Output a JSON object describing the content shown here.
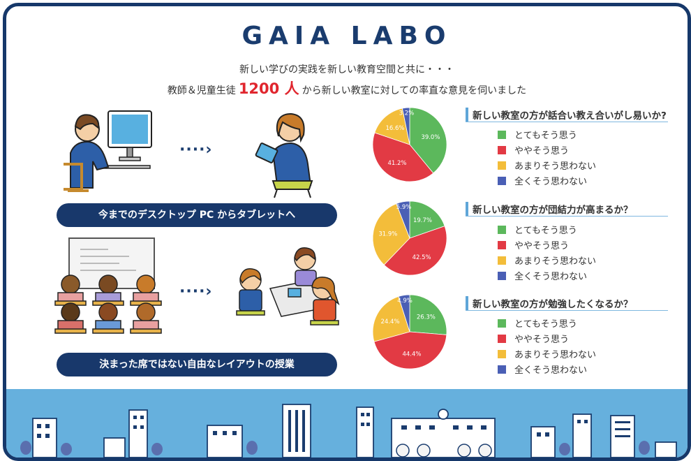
{
  "header": {
    "title": "GAIA LABO",
    "subtitle_line1": "新しい学びの実践を新しい教育空間と共に・・・",
    "subtitle_pre": "教師＆児童生徒",
    "subtitle_count": "1200 人",
    "subtitle_post": "から新しい教室に対しての率直な意見を伺いました"
  },
  "left": {
    "arrow": "····›",
    "caption1": "今までのデスクトップ PC からタブレットへ",
    "caption2": "決まった席ではない自由なレイアウトの授業"
  },
  "colors": {
    "navy": "#18386b",
    "accent_red": "#e0262e",
    "sky": "#66b0dd",
    "green": "#5cb85c",
    "red": "#e23a44",
    "yellow": "#f3bd3a",
    "blue": "#4a5fb5"
  },
  "legend": [
    "とてもそう思う",
    "ややそう思う",
    "あまりそう思わない",
    "全くそう思わない"
  ],
  "chart_data": [
    {
      "type": "pie",
      "title": "新しい教室の方が話合い教え合いがし易いか?",
      "categories": [
        "とてもそう思う",
        "ややそう思う",
        "あまりそう思わない",
        "全くそう思わない"
      ],
      "values": [
        39.0,
        41.2,
        16.6,
        3.2
      ],
      "labels": [
        "39.0%",
        "41.2%",
        "16.6%",
        "3.2%"
      ]
    },
    {
      "type": "pie",
      "title": "新しい教室の方が団結力が高まるか？",
      "categories": [
        "とてもそう思う",
        "ややそう思う",
        "あまりそう思わない",
        "全くそう思わない"
      ],
      "values": [
        19.7,
        42.5,
        31.9,
        5.9
      ],
      "labels": [
        "19.7%",
        "42.5%",
        "31.9%",
        "5.9%"
      ]
    },
    {
      "type": "pie",
      "title": "新しい教室の方が勉強したくなるか？",
      "categories": [
        "とてもそう思う",
        "ややそう思う",
        "あまりそう思わない",
        "全くそう思わない"
      ],
      "values": [
        26.3,
        44.4,
        24.4,
        4.9
      ],
      "labels": [
        "26.3%",
        "44.4%",
        "24.4%",
        "4.9%"
      ]
    }
  ]
}
